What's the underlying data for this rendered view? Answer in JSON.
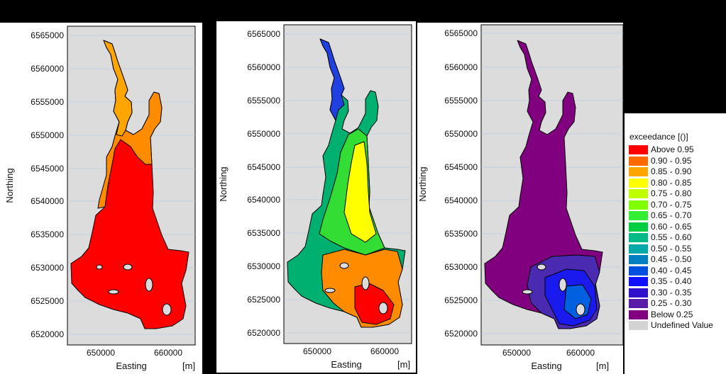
{
  "maps": [
    {
      "name": "panel-left",
      "yticks": [
        "6565000",
        "6560000",
        "6555000",
        "6550000",
        "6545000",
        "6540000",
        "6535000",
        "6530000",
        "6525000",
        "6520000"
      ],
      "xticks": [
        "650000",
        "660000"
      ],
      "ylabel": "Northing",
      "xlabel": "Easting",
      "unit": "[m]"
    },
    {
      "name": "panel-middle",
      "yticks": [
        "6565000",
        "6560000",
        "6555000",
        "6550000",
        "6545000",
        "6540000",
        "6535000",
        "6530000",
        "6525000",
        "6520000"
      ],
      "xticks": [
        "650000",
        "660000"
      ],
      "ylabel": "Northing",
      "xlabel": "Easting",
      "unit": "[m]"
    },
    {
      "name": "panel-right",
      "yticks": [
        "6565000",
        "6560000",
        "6555000",
        "6550000",
        "6545000",
        "6540000",
        "6535000",
        "6530000",
        "6525000",
        "6520000"
      ],
      "xticks": [
        "650000",
        "660000"
      ],
      "ylabel": "Northing",
      "xlabel": "Easting",
      "unit": "[m]"
    }
  ],
  "legend": {
    "title": "exceedance [()]",
    "items": [
      {
        "label": "Above 0.95",
        "color": "#ff0000"
      },
      {
        "label": "0.90 - 0.95",
        "color": "#ff6a00"
      },
      {
        "label": "0.85 - 0.90",
        "color": "#ffa500"
      },
      {
        "label": "0.80 - 0.85",
        "color": "#ffff00"
      },
      {
        "label": "0.75 - 0.80",
        "color": "#bfff00"
      },
      {
        "label": "0.70 - 0.75",
        "color": "#80ff00"
      },
      {
        "label": "0.65 - 0.70",
        "color": "#33ee33"
      },
      {
        "label": "0.60 - 0.65",
        "color": "#00cc44"
      },
      {
        "label": "0.55 - 0.60",
        "color": "#00bb88"
      },
      {
        "label": "0.50 - 0.55",
        "color": "#00a8a8"
      },
      {
        "label": "0.45 - 0.50",
        "color": "#0080c0"
      },
      {
        "label": "0.40 - 0.45",
        "color": "#0050e0"
      },
      {
        "label": "0.35 - 0.40",
        "color": "#1010ff"
      },
      {
        "label": "0.30 - 0.35",
        "color": "#3010cc"
      },
      {
        "label": "0.25 - 0.30",
        "color": "#5a1aa8"
      },
      {
        "label": "Below 0.25",
        "color": "#800080"
      },
      {
        "label": "Undefined Value",
        "color": "#d3d3d3"
      }
    ]
  },
  "colors": {
    "plot_bg": "#dcdcdc",
    "grid": "#aac8e8"
  }
}
